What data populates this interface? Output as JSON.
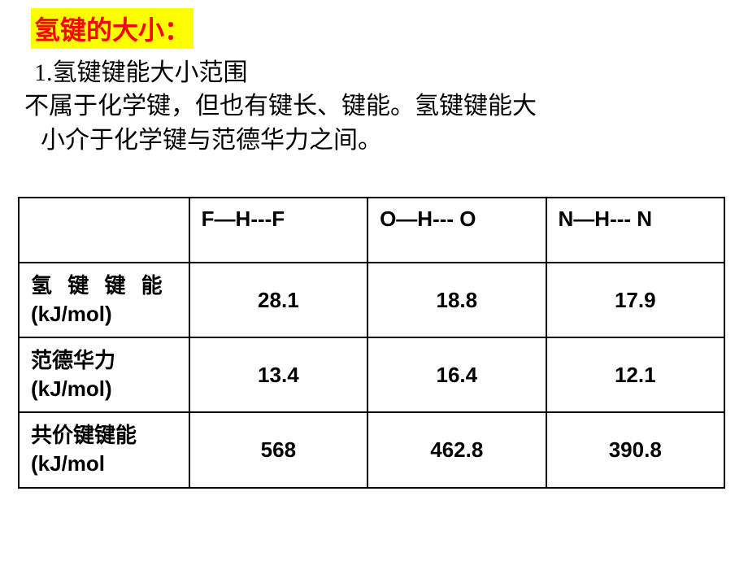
{
  "title": "氢键的大小：",
  "subtitle": "1.氢键键能大小范围",
  "description_line1": "不属于化学键，但也有键长、键能。氢键键能大",
  "description_line2": "小介于化学键与范德华力之间。",
  "table": {
    "columns": [
      "F—H---F",
      "O—H--- O",
      "N—H--- N"
    ],
    "rows": [
      {
        "label_cn": "氢 键 键 能",
        "label_unit": "(kJ/mol)",
        "values": [
          "28.1",
          "18.8",
          "17.9"
        ]
      },
      {
        "label_cn": "范德华力",
        "label_unit": "(kJ/mol)",
        "values": [
          "13.4",
          "16.4",
          "12.1"
        ]
      },
      {
        "label_cn": "共价键键能",
        "label_unit": "(kJ/mol",
        "values": [
          "568",
          "462.8",
          "390.8"
        ]
      }
    ]
  },
  "styling": {
    "title_bg_color": "#ffff00",
    "title_text_color": "#ff0000",
    "title_fontsize": 32,
    "subtitle_fontsize": 30,
    "description_fontsize": 30,
    "table_fontsize": 26,
    "table_border_color": "#000000",
    "table_border_width": 2.5,
    "background_color": "#ffffff",
    "text_color": "#000000"
  }
}
